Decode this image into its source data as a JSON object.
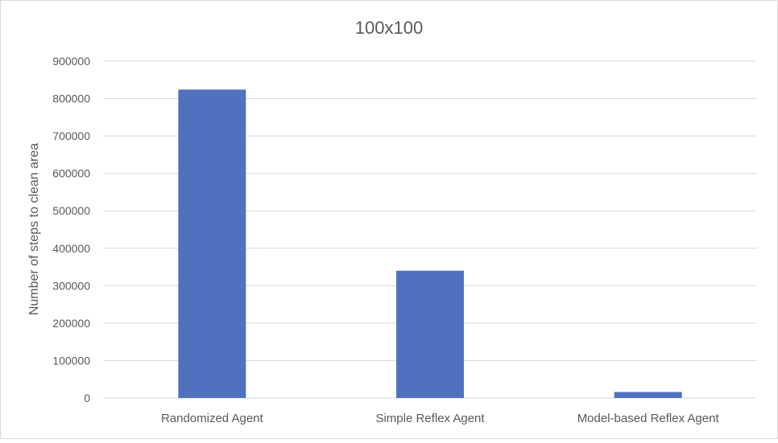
{
  "chart_data": {
    "type": "bar",
    "title": "100x100",
    "xlabel": "",
    "ylabel": "Number of steps to clean area",
    "categories": [
      "Randomized Agent",
      "Simple Reflex Agent",
      "Model-based Reflex Agent"
    ],
    "series": [
      {
        "values": [
          824000,
          340000,
          16000
        ],
        "color": "#4F71BE"
      }
    ],
    "ylim": [
      0,
      900000
    ],
    "yticks": [
      "0",
      "100000",
      "200000",
      "300000",
      "400000",
      "500000",
      "600000",
      "700000",
      "800000",
      "900000"
    ],
    "grid": true,
    "legend": "none"
  }
}
